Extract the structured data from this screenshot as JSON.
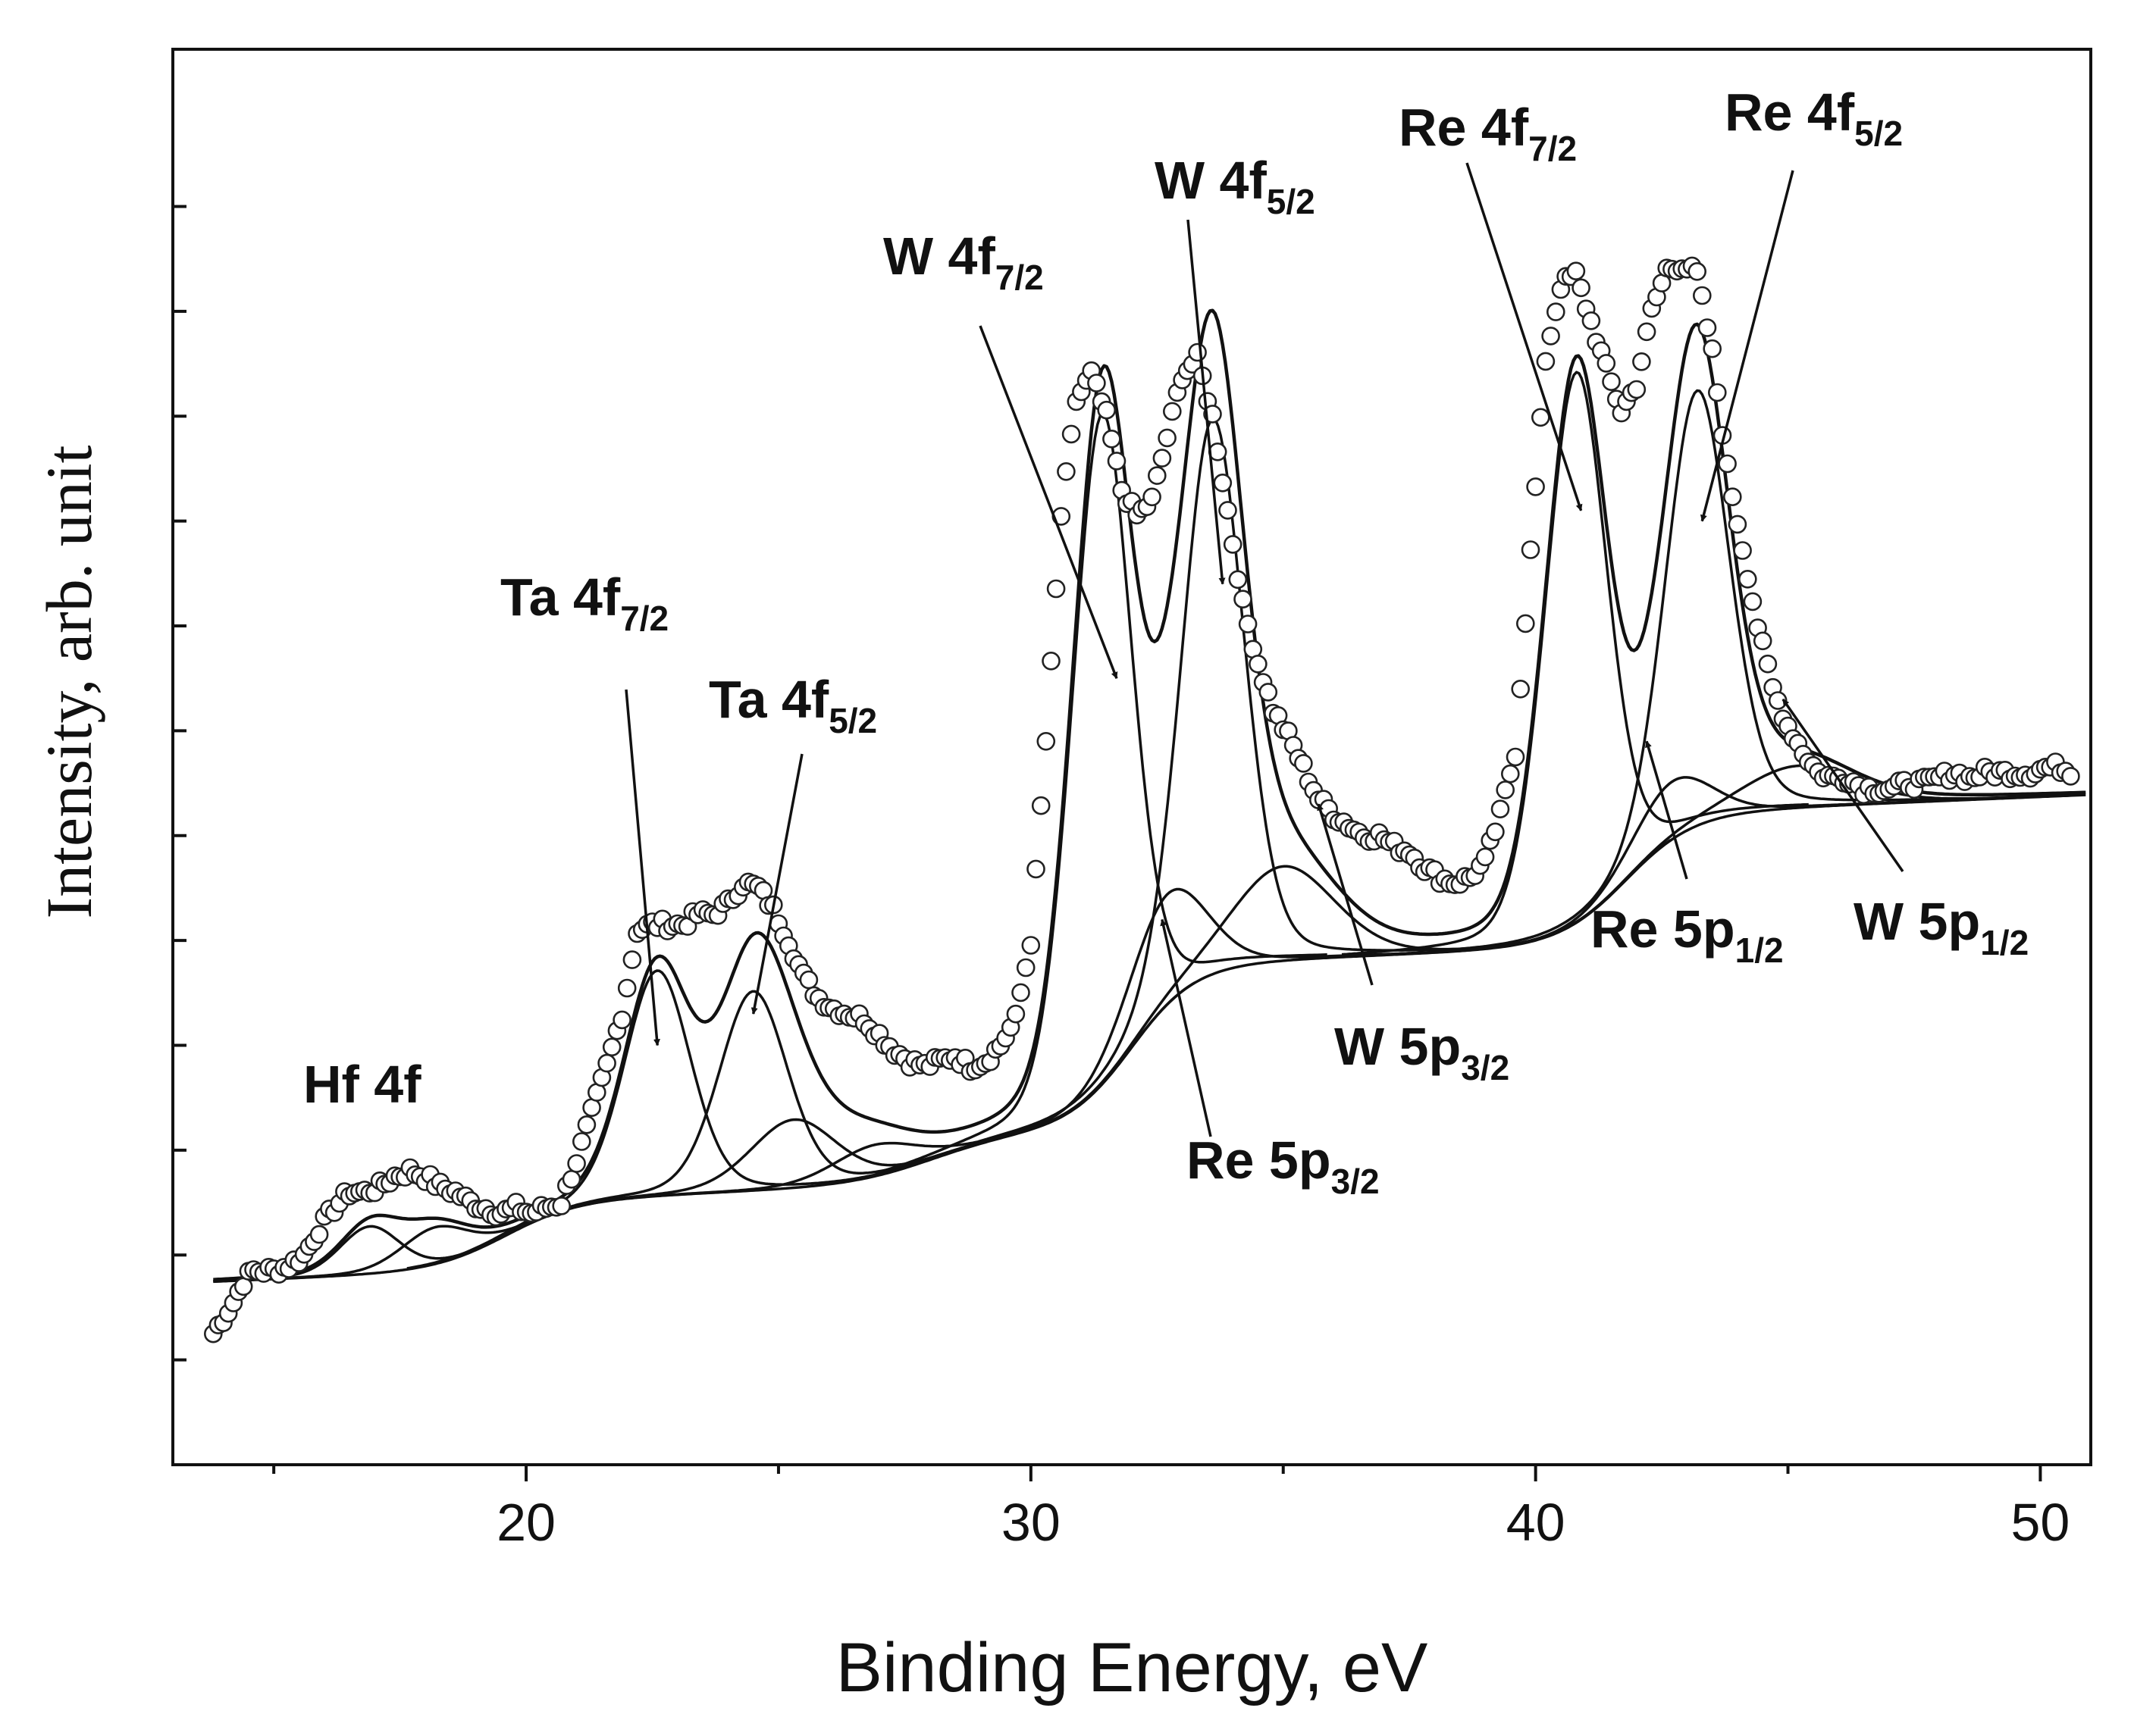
{
  "chart_data": {
    "type": "scatter",
    "title": "",
    "xlabel": "Binding Energy, eV",
    "ylabel": "Intensity, arb. unit",
    "xlim": [
      13,
      51
    ],
    "ylim": [
      0,
      13.5
    ],
    "x_ticks": [
      20,
      30,
      40,
      50
    ],
    "x_minor_ticks": [
      15,
      25,
      35,
      45
    ],
    "y_ticks": [
      1,
      2,
      3,
      4,
      5,
      6,
      7,
      8,
      9,
      10,
      11,
      12
    ],
    "y_tick_labels_shown": false,
    "grid": false,
    "series": [
      {
        "name": "measured spectrum",
        "style": "open circles",
        "x": [
          13.8,
          14.0,
          14.2,
          14.4,
          14.6,
          14.8,
          15.0,
          15.3,
          15.6,
          15.9,
          16.2,
          16.5,
          16.8,
          17.1,
          17.4,
          17.7,
          18.0,
          18.3,
          18.6,
          18.9,
          19.2,
          19.5,
          19.8,
          20.1,
          20.4,
          20.7,
          21.0,
          21.3,
          21.6,
          21.9,
          22.2,
          22.5,
          22.8,
          23.1,
          23.4,
          23.7,
          24.0,
          24.3,
          24.6,
          24.9,
          25.2,
          25.5,
          25.8,
          26.1,
          26.4,
          26.7,
          27.0,
          27.3,
          27.6,
          27.9,
          28.2,
          28.5,
          28.8,
          29.1,
          29.4,
          29.7,
          30.0,
          30.3,
          30.6,
          30.9,
          31.2,
          31.5,
          31.8,
          32.1,
          32.4,
          32.7,
          33.0,
          33.3,
          33.6,
          33.9,
          34.2,
          34.5,
          34.8,
          35.1,
          35.4,
          35.7,
          36.0,
          36.3,
          36.6,
          36.9,
          37.2,
          37.5,
          37.8,
          38.1,
          38.4,
          38.7,
          39.0,
          39.3,
          39.6,
          39.9,
          40.2,
          40.5,
          40.8,
          41.1,
          41.4,
          41.7,
          42.0,
          42.3,
          42.6,
          42.9,
          43.2,
          43.5,
          43.8,
          44.1,
          44.4,
          44.7,
          45.0,
          45.3,
          45.6,
          45.9,
          46.2,
          46.5,
          46.8,
          47.1,
          47.4,
          47.7,
          48.0,
          48.3,
          48.6,
          48.9,
          49.2,
          49.5,
          49.8,
          50.1,
          50.4,
          50.7
        ],
        "y": [
          1.25,
          1.4,
          1.55,
          1.75,
          1.85,
          1.85,
          1.85,
          1.9,
          2.0,
          2.25,
          2.45,
          2.6,
          2.6,
          2.65,
          2.75,
          2.8,
          2.75,
          2.65,
          2.6,
          2.5,
          2.45,
          2.4,
          2.45,
          2.4,
          2.45,
          2.5,
          2.9,
          3.35,
          3.8,
          4.3,
          5.1,
          5.15,
          5.15,
          5.15,
          5.25,
          5.25,
          5.35,
          5.55,
          5.5,
          5.3,
          5.0,
          4.65,
          4.45,
          4.35,
          4.3,
          4.25,
          4.1,
          3.95,
          3.85,
          3.8,
          3.85,
          3.9,
          3.8,
          3.85,
          4.0,
          4.25,
          5.0,
          6.9,
          9.05,
          10.15,
          10.4,
          10.0,
          9.3,
          9.05,
          9.2,
          9.8,
          10.4,
          10.55,
          10.0,
          9.1,
          8.2,
          7.65,
          7.2,
          6.95,
          6.65,
          6.35,
          6.2,
          6.1,
          6.0,
          6.0,
          5.9,
          5.85,
          5.7,
          5.6,
          5.55,
          5.6,
          5.75,
          6.2,
          6.8,
          8.7,
          10.55,
          11.25,
          11.35,
          10.9,
          10.45,
          10.05,
          10.3,
          11.0,
          11.4,
          11.45,
          11.35,
          10.6,
          9.5,
          8.75,
          8.0,
          7.4,
          7.05,
          6.8,
          6.6,
          6.55,
          6.55,
          6.45,
          6.45,
          6.45,
          6.5,
          6.5,
          6.55,
          6.6,
          6.55,
          6.6,
          6.6,
          6.6,
          6.6,
          6.65,
          6.65,
          6.6
        ]
      },
      {
        "name": "fitted envelope",
        "style": "solid line"
      },
      {
        "name": "Shirley background",
        "style": "solid line"
      },
      {
        "name": "Hf 4f",
        "type": "peak",
        "center": 16.9,
        "height": 0.45,
        "fwhm": 1.4
      },
      {
        "name": "Hf 4f (5/2)",
        "type": "peak",
        "center": 18.2,
        "height": 0.35,
        "fwhm": 1.6
      },
      {
        "name": "Ta 4f7/2",
        "type": "peak",
        "center": 22.6,
        "height": 2.15,
        "fwhm": 1.55
      },
      {
        "name": "Ta 4f5/2",
        "type": "peak",
        "center": 24.5,
        "height": 1.9,
        "fwhm": 1.6
      },
      {
        "name": "Ta 5p3/2",
        "type": "peak",
        "center": 25.3,
        "height": 0.65,
        "fwhm": 2.0
      },
      {
        "name": "Ta 5p1/2",
        "type": "peak",
        "center": 26.9,
        "height": 0.3,
        "fwhm": 2.0
      },
      {
        "name": "W 4f7/2",
        "type": "peak",
        "center": 31.4,
        "height": 6.4,
        "fwhm": 1.4
      },
      {
        "name": "W 4f5/2",
        "type": "peak",
        "center": 33.6,
        "height": 5.3,
        "fwhm": 1.45
      },
      {
        "name": "Re 5p3/2",
        "type": "peak",
        "center": 32.7,
        "height": 1.05,
        "fwhm": 1.8
      },
      {
        "name": "W 5p3/2",
        "type": "peak",
        "center": 35.0,
        "height": 0.9,
        "fwhm": 2.4
      },
      {
        "name": "Re 4f7/2",
        "type": "peak",
        "center": 40.8,
        "height": 5.25,
        "fwhm": 1.45
      },
      {
        "name": "Re 4f5/2",
        "type": "peak",
        "center": 43.2,
        "height": 4.15,
        "fwhm": 1.5
      },
      {
        "name": "Re 5p1/2",
        "type": "peak",
        "center": 42.7,
        "height": 0.55,
        "fwhm": 1.8
      },
      {
        "name": "W 5p1/2",
        "type": "peak",
        "center": 45.2,
        "height": 0.4,
        "fwhm": 2.6
      }
    ],
    "background": {
      "start": 1.75,
      "steps": [
        [
          19.6,
          0.65,
          1.6
        ],
        [
          28.0,
          0.45,
          1.8
        ],
        [
          32.0,
          1.55,
          1.4
        ],
        [
          41.8,
          1.25,
          1.5
        ]
      ]
    },
    "annotations": [
      {
        "id": "hf4f",
        "text": "Hf 4f",
        "sub": ""
      },
      {
        "id": "ta47",
        "text": "Ta 4f",
        "sub": "7/2",
        "arrow_to": [
          22.6,
          4.0
        ]
      },
      {
        "id": "ta45",
        "text": "Ta 4f",
        "sub": "5/2",
        "arrow_to": [
          24.5,
          4.3
        ]
      },
      {
        "id": "w47",
        "text": "W 4f",
        "sub": "7/2",
        "arrow_to": [
          31.7,
          7.5
        ]
      },
      {
        "id": "w45",
        "text": "W 4f",
        "sub": "5/2",
        "arrow_to": [
          33.8,
          8.4
        ]
      },
      {
        "id": "re47",
        "text": "Re 4f",
        "sub": "7/2",
        "arrow_to": [
          40.9,
          9.1
        ]
      },
      {
        "id": "re45",
        "text": "Re 4f",
        "sub": "5/2",
        "arrow_to": [
          43.3,
          9.0
        ]
      },
      {
        "id": "re5p32",
        "text": "Re 5p",
        "sub": "3/2",
        "arrow_to": [
          32.6,
          5.2
        ]
      },
      {
        "id": "w5p32",
        "text": "W 5p",
        "sub": "3/2",
        "arrow_to": [
          35.7,
          6.3
        ]
      },
      {
        "id": "re5p12",
        "text": "Re 5p",
        "sub": "1/2",
        "arrow_to": [
          42.2,
          6.9
        ]
      },
      {
        "id": "w5p12",
        "text": "W 5p",
        "sub": "1/2",
        "arrow_to": [
          44.9,
          7.3
        ]
      }
    ]
  }
}
